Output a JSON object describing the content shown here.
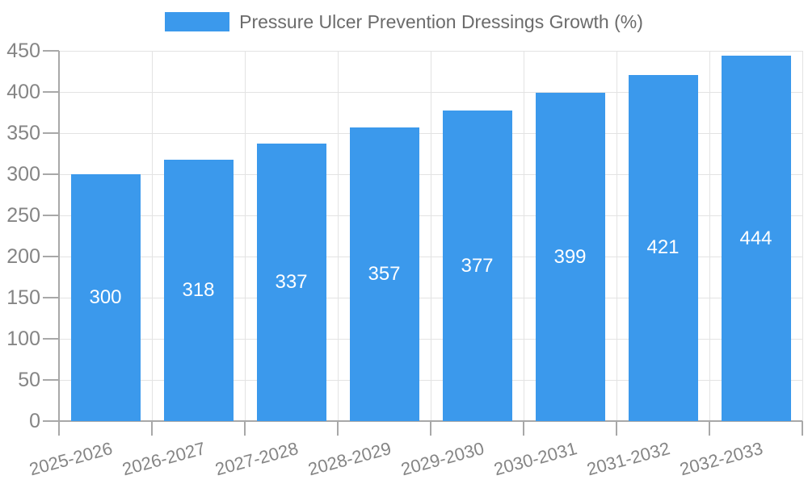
{
  "legend": {
    "label": "Pressure Ulcer Prevention Dressings Growth (%)"
  },
  "chart_data": {
    "type": "bar",
    "title": "Pressure Ulcer Prevention Dressings Growth (%)",
    "categories": [
      "2025-2026",
      "2026-2027",
      "2027-2028",
      "2028-2029",
      "2029-2030",
      "2030-2031",
      "2031-2032",
      "2032-2033"
    ],
    "values": [
      300,
      318,
      337,
      357,
      377,
      399,
      421,
      444
    ],
    "ylim": [
      0,
      450
    ],
    "yticks": [
      0,
      50,
      100,
      150,
      200,
      250,
      300,
      350,
      400,
      450
    ],
    "grid": true,
    "legend_position": "top",
    "value_label_position": "inside-center",
    "x_label_rotation_deg": -15
  },
  "colors": {
    "bar": "#3b99ec",
    "grid": "#e3e3e3",
    "axis": "#a8a8a8",
    "tick_label": "#858585",
    "title": "#6b6b6b",
    "value_label": "#ffffff",
    "background": "#ffffff"
  }
}
